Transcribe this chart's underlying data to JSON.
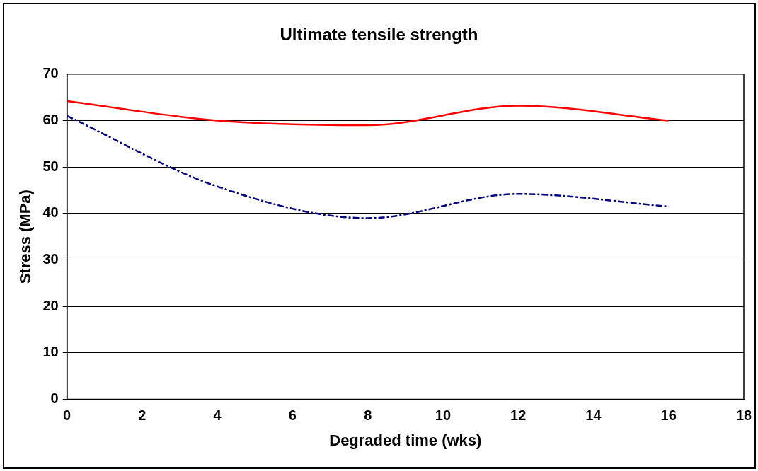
{
  "chart_data": {
    "type": "line",
    "title": "Ultimate tensile strength",
    "xlabel": "Degraded time (wks)",
    "ylabel": "Stress (MPa)",
    "x": [
      0,
      4,
      8,
      12,
      16
    ],
    "series": [
      {
        "color": "#ff0000",
        "values": [
          64.2,
          60,
          59,
          63.2,
          60
        ],
        "line_style": "solid"
      },
      {
        "color": "#000080",
        "values": [
          61,
          45.8,
          39,
          44.2,
          41.5
        ],
        "line_style": "dashed"
      }
    ],
    "xlim": [
      0,
      18
    ],
    "xticks": [
      0,
      2,
      4,
      6,
      8,
      10,
      12,
      14,
      16,
      18
    ],
    "ylim": [
      0,
      70
    ],
    "yticks": [
      0,
      10,
      20,
      30,
      40,
      50,
      60,
      70
    ],
    "grid": "y",
    "legend": false,
    "marker": "none"
  }
}
